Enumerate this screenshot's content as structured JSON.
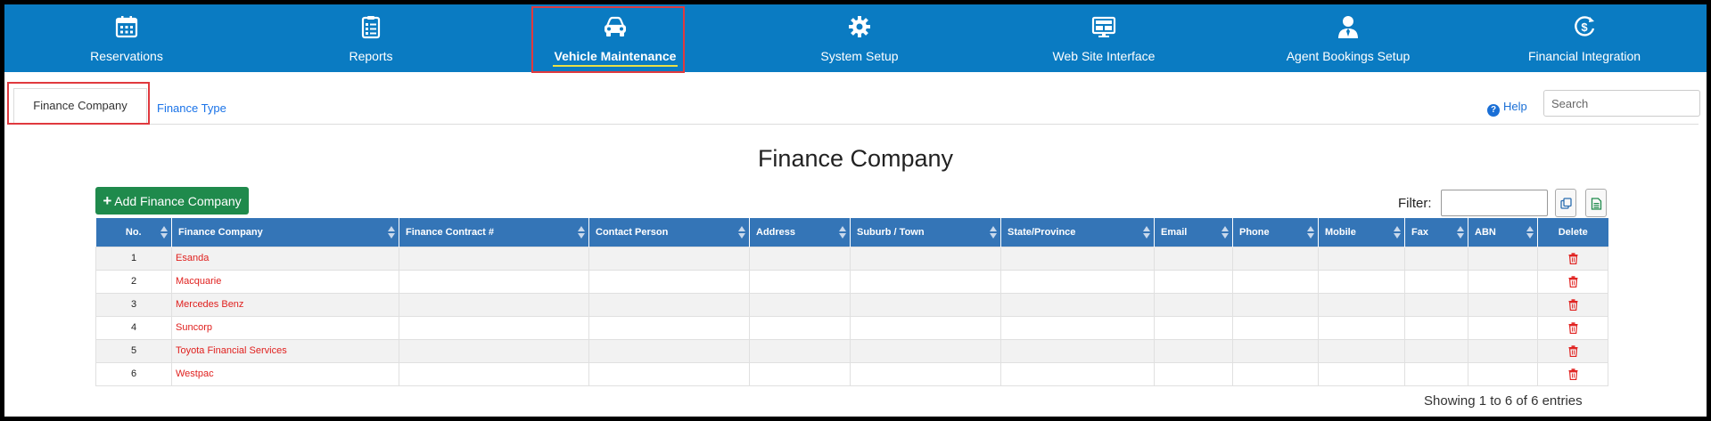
{
  "nav": {
    "items": [
      {
        "label": "Reservations",
        "icon": "calendar-icon"
      },
      {
        "label": "Reports",
        "icon": "clipboard-icon"
      },
      {
        "label": "Vehicle Maintenance",
        "icon": "car-icon",
        "active": true
      },
      {
        "label": "System Setup",
        "icon": "gear-icon"
      },
      {
        "label": "Web Site Interface",
        "icon": "monitor-icon"
      },
      {
        "label": "Agent Bookings Setup",
        "icon": "agent-icon"
      },
      {
        "label": "Financial Integration",
        "icon": "dollar-cycle-icon"
      }
    ]
  },
  "subtabs": {
    "active": "Finance Company",
    "other": "Finance Type"
  },
  "help": {
    "label": "Help"
  },
  "search": {
    "placeholder": "Search",
    "value": ""
  },
  "page": {
    "title": "Finance Company",
    "add_button": "Add Finance Company",
    "filter_label": "Filter:",
    "filter_value": "",
    "entries_text": "Showing 1 to 6 of 6 entries"
  },
  "table": {
    "columns": [
      "No.",
      "Finance Company",
      "Finance Contract #",
      "Contact Person",
      "Address",
      "Suburb / Town",
      "State/Province",
      "Email",
      "Phone",
      "Mobile",
      "Fax",
      "ABN",
      "Delete"
    ],
    "rows": [
      {
        "no": "1",
        "name": "Esanda"
      },
      {
        "no": "2",
        "name": "Macquarie"
      },
      {
        "no": "3",
        "name": "Mercedes Benz"
      },
      {
        "no": "4",
        "name": "Suncorp"
      },
      {
        "no": "5",
        "name": "Toyota Financial Services"
      },
      {
        "no": "6",
        "name": "Westpac"
      }
    ]
  },
  "colors": {
    "nav_bg": "#0a7bc2",
    "header_bg": "#3475b7",
    "add_button": "#1f8a4c",
    "highlight": "#e0393e",
    "link": "#1a73e8",
    "name_text": "#e0201e"
  }
}
